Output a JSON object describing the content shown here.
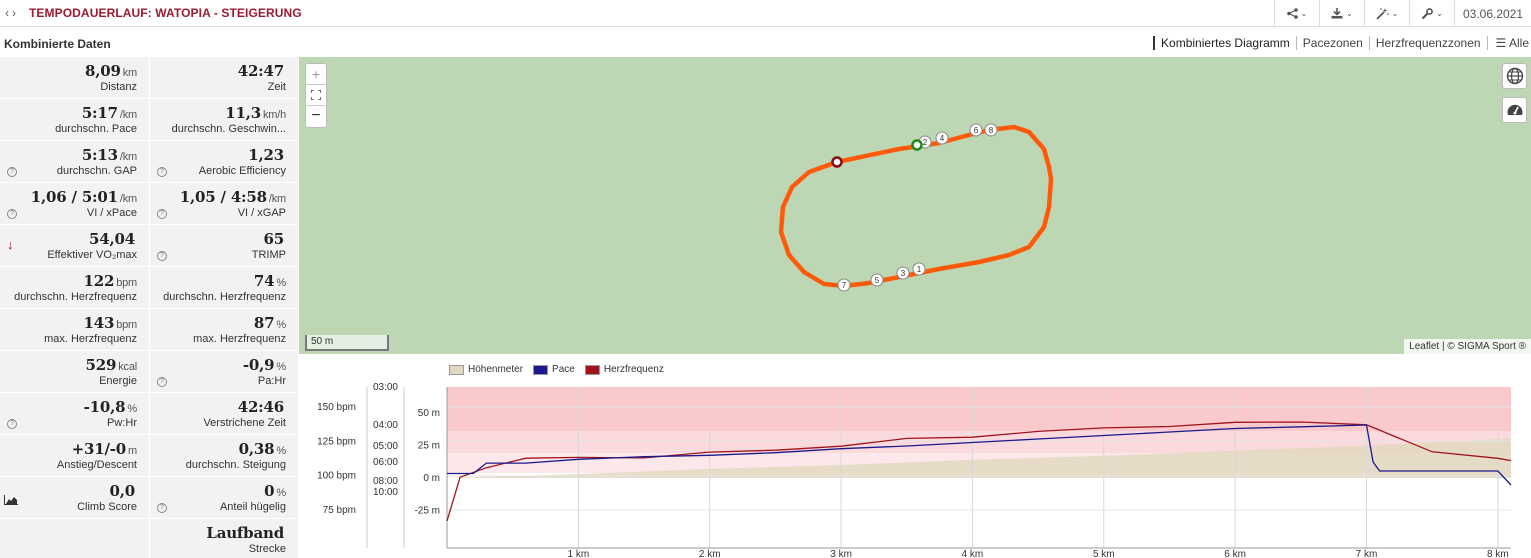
{
  "header": {
    "title": "TEMPODAUERLAUF: WATOPIA - STEIGERUNG",
    "date": "03.06.2021"
  },
  "section": {
    "title": "Kombinierte Daten"
  },
  "tabs": [
    "Kombiniertes Diagramm",
    "Pacezonen",
    "Herzfrequenzzonen",
    "Alle"
  ],
  "stats": [
    {
      "value": "8,09",
      "unit": "km",
      "label": "Distanz",
      "icon": ""
    },
    {
      "value": "42:47",
      "unit": "",
      "label": "Zeit",
      "icon": ""
    },
    {
      "value": "5:17",
      "unit": "/km",
      "label": "durchschn. Pace",
      "icon": ""
    },
    {
      "value": "11,3",
      "unit": "km/h",
      "label": "durchschn. Geschwin...",
      "icon": ""
    },
    {
      "value": "5:13",
      "unit": "/km",
      "label": "durchschn. GAP",
      "icon": "help-icon"
    },
    {
      "value": "1,23",
      "unit": "",
      "label": "Aerobic Efficiency",
      "icon": "help-icon"
    },
    {
      "value": "1,06 / 5:01",
      "unit": "/km",
      "label": "VI / xPace",
      "icon": "help-icon"
    },
    {
      "value": "1,05 / 4:58",
      "unit": "/km",
      "label": "VI / xGAP",
      "icon": "help-icon"
    },
    {
      "value": "54,04",
      "unit": "",
      "label": "Effektiver VO₂max",
      "icon": "arrow-down-icon"
    },
    {
      "value": "65",
      "unit": "",
      "label": "TRIMP",
      "icon": "help-icon"
    },
    {
      "value": "122",
      "unit": "bpm",
      "label": "durchschn. Herzfrequenz",
      "icon": ""
    },
    {
      "value": "74",
      "unit": "%",
      "label": "durchschn. Herzfrequenz",
      "icon": ""
    },
    {
      "value": "143",
      "unit": "bpm",
      "label": "max. Herzfrequenz",
      "icon": ""
    },
    {
      "value": "87",
      "unit": "%",
      "label": "max. Herzfrequenz",
      "icon": ""
    },
    {
      "value": "529",
      "unit": "kcal",
      "label": "Energie",
      "icon": ""
    },
    {
      "value": "-0,9",
      "unit": "%",
      "label": "Pa:Hr",
      "icon": "help-icon"
    },
    {
      "value": "-10,8",
      "unit": "%",
      "label": "Pw:Hr",
      "icon": "help-icon"
    },
    {
      "value": "42:46",
      "unit": "",
      "label": "Verstrichene Zeit",
      "icon": ""
    },
    {
      "value": "+31/-0",
      "unit": "m",
      "label": "Anstieg/Descent",
      "icon": ""
    },
    {
      "value": "0,38",
      "unit": "%",
      "label": "durchschn. Steigung",
      "icon": ""
    },
    {
      "value": "0,0",
      "unit": "",
      "label": "Climb Score",
      "icon": "climb-icon"
    },
    {
      "value": "0",
      "unit": "%",
      "label": "Anteil hügelig",
      "icon": "help-icon"
    },
    {
      "value": "",
      "unit": "",
      "label": "",
      "icon": ""
    },
    {
      "value": "Laufband",
      "unit": "",
      "label": "Strecke",
      "icon": ""
    }
  ],
  "map": {
    "scale_label": "50 m",
    "attribution": "Leaflet | © SIGMA Sport ®",
    "zoom_in": "+",
    "zoom_out": "−",
    "markers": [
      "1",
      "2",
      "3",
      "4",
      "5",
      "6",
      "7",
      "8"
    ],
    "route_color": "#ff5a0a"
  },
  "chart_data": {
    "type": "line",
    "legend": [
      "Höhenmeter",
      "Pace",
      "Herzfrequenz"
    ],
    "colors": {
      "elevation": "#e2d8c0",
      "pace": "#1a1a8c",
      "hr": "#a0141e"
    },
    "x_unit": "km",
    "x_ticks": [
      "1 km",
      "2 km",
      "3 km",
      "4 km",
      "5 km",
      "6 km",
      "7 km",
      "8 km"
    ],
    "xlim": [
      0,
      8.1
    ],
    "hr_ticks": [
      "150 bpm",
      "125 bpm",
      "100 bpm",
      "75 bpm"
    ],
    "pace_ticks": [
      "03:00",
      "04:00",
      "05:00",
      "06:00",
      "08:00",
      "10:00"
    ],
    "elev_ticks": [
      "50 m",
      "25 m",
      "0 m",
      "-25 m"
    ],
    "series": [
      {
        "name": "Herzfrequenz",
        "x": [
          0,
          0.1,
          0.3,
          0.6,
          1.0,
          1.5,
          2.0,
          2.5,
          3.0,
          3.5,
          4.0,
          4.5,
          5.0,
          5.5,
          6.0,
          6.5,
          7.0,
          7.2,
          7.5,
          8.0,
          8.1
        ],
        "values": [
          67,
          98,
          107,
          112,
          113,
          114,
          116,
          119,
          122,
          126,
          129,
          132,
          134,
          137,
          138,
          139,
          138,
          128,
          118,
          113,
          111
        ]
      },
      {
        "name": "Pace",
        "x": [
          0,
          0.2,
          0.3,
          0.6,
          1.0,
          1.5,
          2.0,
          2.5,
          3.0,
          3.5,
          4.0,
          4.5,
          5.0,
          5.5,
          6.0,
          6.5,
          7.0,
          7.05,
          7.1,
          8.0,
          8.1
        ],
        "values": [
          "07:30",
          "07:30",
          "06:10",
          "06:10",
          "05:50",
          "05:40",
          "05:35",
          "05:25",
          "05:10",
          "05:00",
          "04:50",
          "04:40",
          "04:30",
          "04:20",
          "04:10",
          "04:05",
          "04:00",
          "06:00",
          "07:20",
          "07:20",
          "09:00"
        ]
      },
      {
        "name": "Höhenmeter",
        "x": [
          0,
          1,
          2,
          3,
          4,
          5,
          6,
          7,
          8,
          8.1
        ],
        "values": [
          0,
          3,
          7,
          10,
          14,
          17,
          21,
          25,
          30,
          31
        ]
      }
    ]
  }
}
